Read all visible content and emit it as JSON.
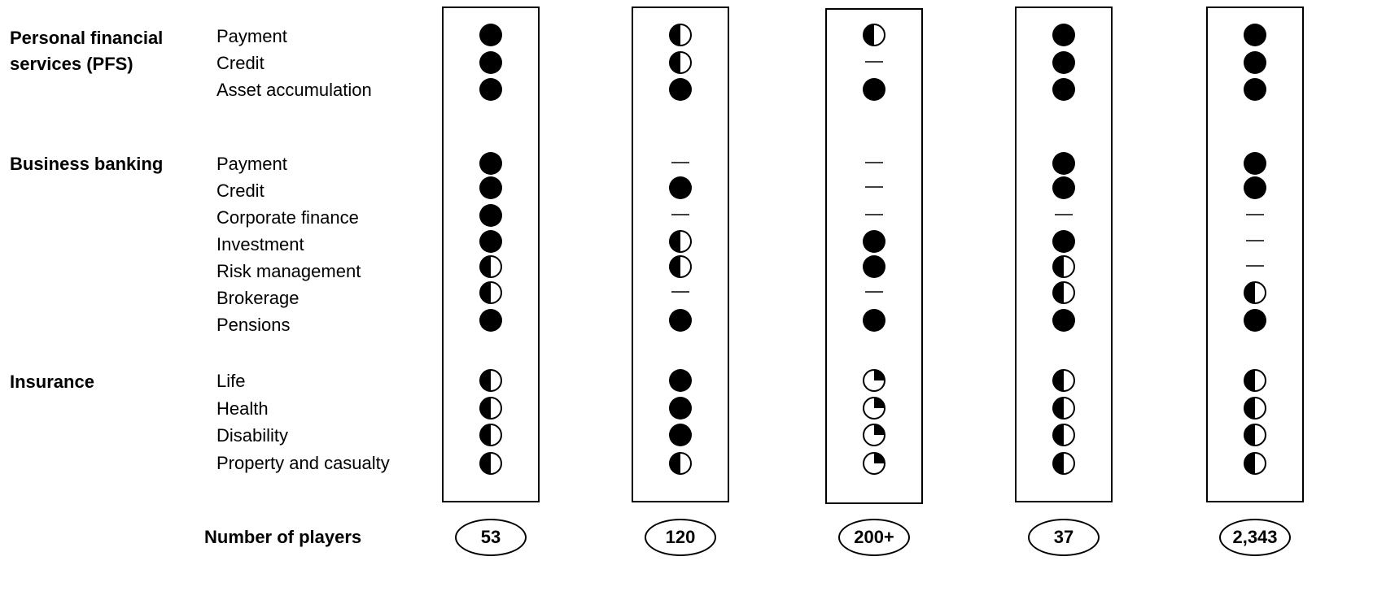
{
  "groups": [
    {
      "label": "Personal financial services (PFS)",
      "items": [
        "Payment",
        "Credit",
        "Asset accumulation"
      ]
    },
    {
      "label": "Business banking",
      "items": [
        "Payment",
        "Credit",
        "Corporate finance",
        "Investment",
        "Risk management",
        "Brokerage",
        "Pensions"
      ]
    },
    {
      "label": "Insurance",
      "items": [
        "Life",
        "Health",
        "Disability",
        "Property and casualty"
      ]
    }
  ],
  "players_label": "Number of players",
  "columns": [
    {
      "players": "53",
      "marks": [
        "full",
        "full",
        "full",
        "full",
        "full",
        "full",
        "full",
        "half",
        "half",
        "full",
        "half",
        "half",
        "half",
        "half"
      ]
    },
    {
      "players": "120",
      "marks": [
        "half",
        "half",
        "full",
        "none",
        "full",
        "none",
        "half",
        "half",
        "none",
        "full",
        "full",
        "full",
        "full",
        "half"
      ]
    },
    {
      "players": "200+",
      "marks": [
        "half",
        "none",
        "full",
        "none",
        "none",
        "none",
        "full",
        "full",
        "none",
        "full",
        "quarter",
        "quarter",
        "quarter",
        "quarter"
      ]
    },
    {
      "players": "37",
      "marks": [
        "full",
        "full",
        "full",
        "full",
        "full",
        "none",
        "full",
        "half",
        "half",
        "full",
        "half",
        "half",
        "half",
        "half"
      ]
    },
    {
      "players": "2,343",
      "marks": [
        "full",
        "full",
        "full",
        "full",
        "full",
        "none",
        "none",
        "none",
        "half",
        "full",
        "half",
        "half",
        "half",
        "half"
      ]
    }
  ]
}
